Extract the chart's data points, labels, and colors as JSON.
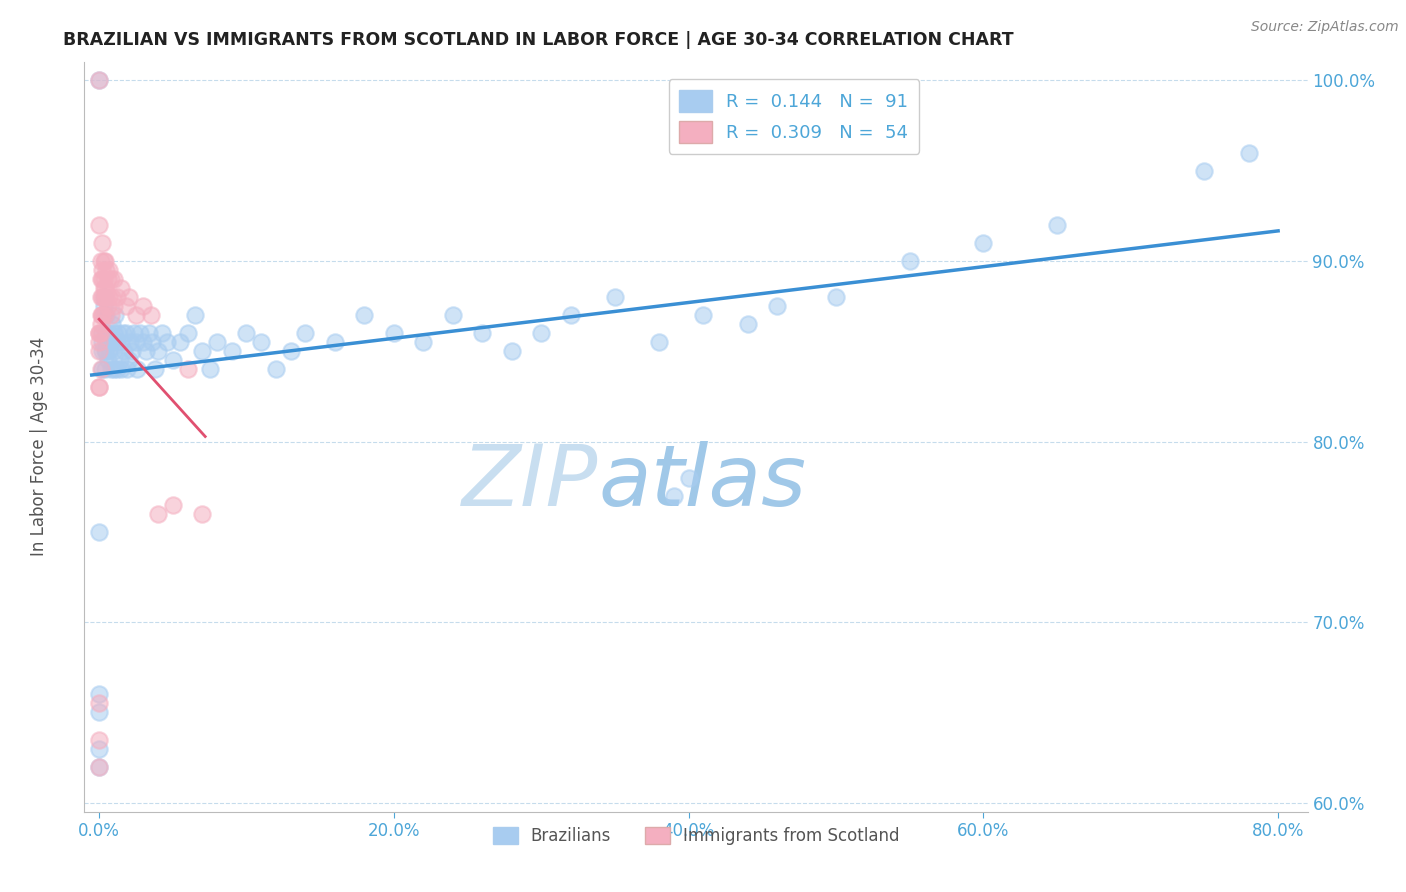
{
  "title": "BRAZILIAN VS IMMIGRANTS FROM SCOTLAND IN LABOR FORCE | AGE 30-34 CORRELATION CHART",
  "source": "Source: ZipAtlas.com",
  "ylabel": "In Labor Force | Age 30-34",
  "watermark_zip": "ZIP",
  "watermark_atlas": "atlas",
  "xlim": [
    -0.01,
    0.82
  ],
  "ylim": [
    0.595,
    1.01
  ],
  "xtick_labels": [
    "0.0%",
    "",
    "20.0%",
    "",
    "40.0%",
    "",
    "60.0%",
    "",
    "80.0%"
  ],
  "xtick_vals": [
    0.0,
    0.1,
    0.2,
    0.3,
    0.4,
    0.5,
    0.6,
    0.7,
    0.8
  ],
  "ytick_labels": [
    "100.0%",
    "90.0%",
    "80.0%",
    "70.0%",
    "60.0%"
  ],
  "ytick_vals": [
    1.0,
    0.9,
    0.8,
    0.7,
    0.6
  ],
  "blue_scatter_color": "#a8ccf0",
  "pink_scatter_color": "#f4afc0",
  "blue_line_color": "#3a8fd4",
  "pink_line_color": "#e05070",
  "title_color": "#222222",
  "source_color": "#888888",
  "axis_label_color": "#555555",
  "tick_color": "#4da6d8",
  "watermark_zip_color": "#c8def0",
  "watermark_atlas_color": "#a0c8e8",
  "legend_label1": "Brazilians",
  "legend_label2": "Immigrants from Scotland",
  "brazil_R": 0.144,
  "brazil_N": 91,
  "scotland_R": 0.309,
  "scotland_N": 54,
  "brazil_x": [
    0.0,
    0.0,
    0.0,
    0.0,
    0.0,
    0.002,
    0.002,
    0.002,
    0.002,
    0.003,
    0.003,
    0.003,
    0.004,
    0.004,
    0.004,
    0.005,
    0.005,
    0.005,
    0.005,
    0.006,
    0.006,
    0.007,
    0.007,
    0.008,
    0.008,
    0.009,
    0.01,
    0.01,
    0.01,
    0.011,
    0.012,
    0.012,
    0.013,
    0.014,
    0.015,
    0.015,
    0.016,
    0.017,
    0.018,
    0.019,
    0.02,
    0.021,
    0.022,
    0.024,
    0.025,
    0.026,
    0.028,
    0.03,
    0.032,
    0.034,
    0.036,
    0.038,
    0.04,
    0.043,
    0.046,
    0.05,
    0.055,
    0.06,
    0.065,
    0.07,
    0.075,
    0.08,
    0.09,
    0.1,
    0.11,
    0.12,
    0.13,
    0.14,
    0.16,
    0.18,
    0.2,
    0.22,
    0.24,
    0.26,
    0.28,
    0.3,
    0.32,
    0.35,
    0.38,
    0.41,
    0.44,
    0.46,
    0.5,
    0.55,
    0.6,
    0.65,
    0.0,
    0.4,
    0.75,
    0.78,
    0.39
  ],
  "brazil_y": [
    0.62,
    0.63,
    0.65,
    0.66,
    1.0,
    0.84,
    0.85,
    0.855,
    0.86,
    0.87,
    0.875,
    0.88,
    0.84,
    0.85,
    0.86,
    0.85,
    0.855,
    0.86,
    0.87,
    0.845,
    0.855,
    0.85,
    0.86,
    0.84,
    0.855,
    0.865,
    0.84,
    0.85,
    0.86,
    0.87,
    0.84,
    0.855,
    0.86,
    0.845,
    0.84,
    0.855,
    0.86,
    0.85,
    0.86,
    0.84,
    0.845,
    0.855,
    0.85,
    0.86,
    0.855,
    0.84,
    0.86,
    0.855,
    0.85,
    0.86,
    0.855,
    0.84,
    0.85,
    0.86,
    0.855,
    0.845,
    0.855,
    0.86,
    0.87,
    0.85,
    0.84,
    0.855,
    0.85,
    0.86,
    0.855,
    0.84,
    0.85,
    0.86,
    0.855,
    0.87,
    0.86,
    0.855,
    0.87,
    0.86,
    0.85,
    0.86,
    0.87,
    0.88,
    0.855,
    0.87,
    0.865,
    0.875,
    0.88,
    0.9,
    0.91,
    0.92,
    0.75,
    0.78,
    0.95,
    0.96,
    0.77
  ],
  "scotland_x": [
    0.0,
    0.0,
    0.0,
    0.0,
    0.0,
    0.0,
    0.0,
    0.0,
    0.001,
    0.001,
    0.001,
    0.001,
    0.001,
    0.002,
    0.002,
    0.002,
    0.002,
    0.003,
    0.003,
    0.003,
    0.004,
    0.004,
    0.004,
    0.005,
    0.005,
    0.006,
    0.006,
    0.007,
    0.007,
    0.008,
    0.008,
    0.009,
    0.01,
    0.01,
    0.012,
    0.015,
    0.018,
    0.02,
    0.025,
    0.03,
    0.035,
    0.04,
    0.05,
    0.06,
    0.07,
    0.0,
    0.001,
    0.002,
    0.0,
    0.0,
    0.003,
    0.001,
    0.002,
    0.004
  ],
  "scotland_y": [
    0.62,
    0.635,
    0.655,
    0.83,
    0.85,
    0.86,
    0.92,
    1.0,
    0.86,
    0.87,
    0.88,
    0.89,
    0.9,
    0.87,
    0.88,
    0.89,
    0.91,
    0.88,
    0.89,
    0.9,
    0.87,
    0.885,
    0.9,
    0.88,
    0.895,
    0.875,
    0.89,
    0.88,
    0.895,
    0.87,
    0.89,
    0.88,
    0.875,
    0.89,
    0.88,
    0.885,
    0.875,
    0.88,
    0.87,
    0.875,
    0.87,
    0.76,
    0.765,
    0.84,
    0.76,
    0.83,
    0.84,
    0.895,
    0.855,
    0.86,
    0.885,
    0.865,
    0.87,
    0.88
  ]
}
